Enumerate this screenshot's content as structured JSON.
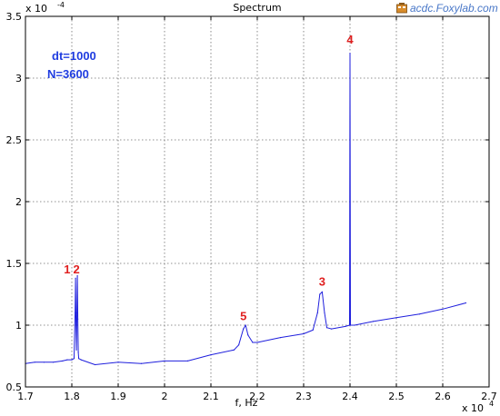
{
  "watermark": {
    "text": "acdc.Foxylab.com",
    "icon": "foxylab-logo-icon"
  },
  "colors": {
    "series": "#1f1fdd",
    "annotation": "#e02020",
    "param": "#1f3ce0",
    "grid": "#6f6f6f",
    "axis": "#000000"
  },
  "chart_data": {
    "type": "line",
    "title": "Spectrum",
    "xlabel": "f, Hz",
    "ylabel": "",
    "x_multiplier": "x 10",
    "x_multiplier_exp": "4",
    "y_multiplier": "x 10",
    "y_multiplier_exp": "-4",
    "xlim": [
      1.7,
      2.7
    ],
    "ylim": [
      0.5,
      3.5
    ],
    "grid": true,
    "x_ticks": [
      "1.7",
      "1.8",
      "1.9",
      "2",
      "2.1",
      "2.2",
      "2.3",
      "2.4",
      "2.5",
      "2.6",
      "2.7"
    ],
    "y_ticks": [
      "0.5",
      "1",
      "1.5",
      "2",
      "2.5",
      "3",
      "3.5"
    ],
    "params": [
      "dt=1000",
      "N=3600"
    ],
    "series": [
      {
        "color": "#1f1fdd",
        "x": [
          1.7,
          1.72,
          1.74,
          1.76,
          1.78,
          1.79,
          1.8,
          1.805,
          1.807,
          1.808,
          1.809,
          1.81,
          1.811,
          1.812,
          1.813,
          1.814,
          1.815,
          1.82,
          1.85,
          1.9,
          1.95,
          2.0,
          2.05,
          2.1,
          2.15,
          2.16,
          2.17,
          2.175,
          2.18,
          2.19,
          2.2,
          2.25,
          2.3,
          2.32,
          2.33,
          2.335,
          2.34,
          2.345,
          2.35,
          2.36,
          2.39,
          2.399,
          2.4,
          2.401,
          2.41,
          2.45,
          2.5,
          2.55,
          2.6,
          2.65
        ],
        "y": [
          0.69,
          0.7,
          0.7,
          0.7,
          0.71,
          0.72,
          0.72,
          0.73,
          1.1,
          1.38,
          1.0,
          0.8,
          1.1,
          1.4,
          1.05,
          0.78,
          0.73,
          0.72,
          0.68,
          0.7,
          0.69,
          0.71,
          0.71,
          0.76,
          0.8,
          0.84,
          0.97,
          1.0,
          0.92,
          0.86,
          0.86,
          0.9,
          0.93,
          0.96,
          1.1,
          1.25,
          1.27,
          1.1,
          0.98,
          0.97,
          0.99,
          1.0,
          3.2,
          1.0,
          1.0,
          1.03,
          1.06,
          1.09,
          1.13,
          1.18
        ]
      }
    ],
    "annotations": [
      {
        "label": "1",
        "x": 1.79,
        "y": 1.42
      },
      {
        "label": "2",
        "x": 1.81,
        "y": 1.42
      },
      {
        "label": "3",
        "x": 2.34,
        "y": 1.32
      },
      {
        "label": "4",
        "x": 2.4,
        "y": 3.28
      },
      {
        "label": "5",
        "x": 2.17,
        "y": 1.04
      }
    ]
  }
}
